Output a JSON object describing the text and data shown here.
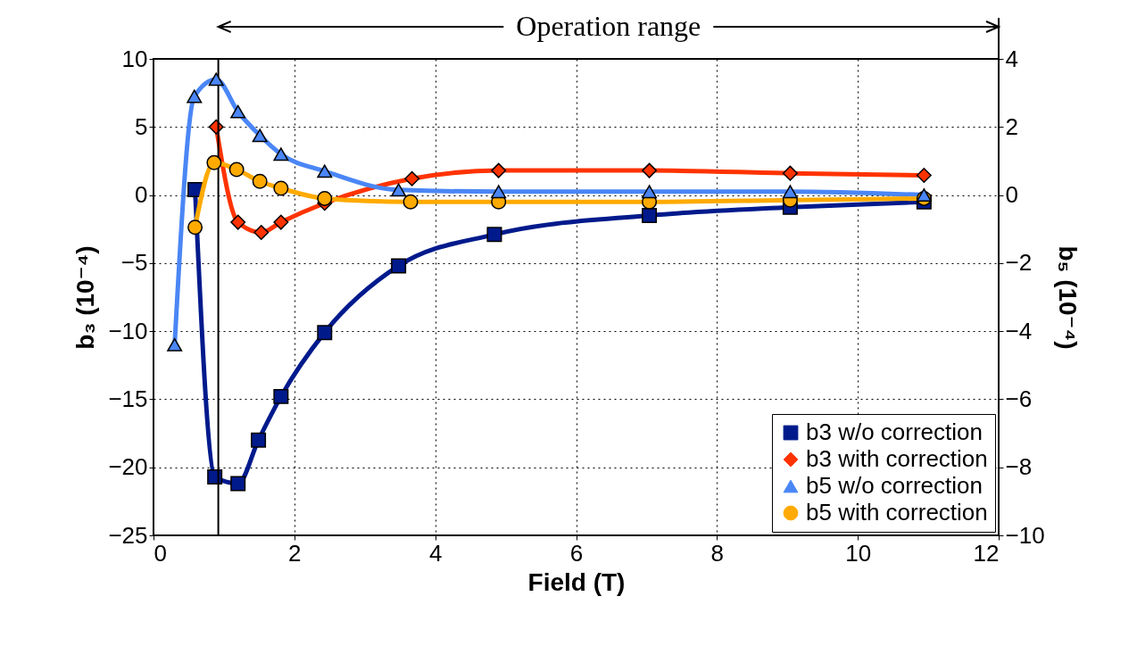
{
  "chart_data": {
    "type": "line",
    "xlabel": "Field (T)",
    "ylabel": "b₃ (10⁻⁴)",
    "y2label": "b₅ (10⁻⁴)",
    "xlim": [
      0,
      12
    ],
    "xticks": [
      0,
      2,
      4,
      6,
      8,
      10,
      12
    ],
    "ylim": [
      -25,
      10
    ],
    "yticks": [
      -25,
      -20,
      -15,
      -10,
      -5,
      0,
      5,
      10
    ],
    "y2lim": [
      -10,
      4
    ],
    "y2ticks": [
      -10,
      -8,
      -6,
      -4,
      -2,
      0,
      2,
      4
    ],
    "grid": true,
    "legend": "bottom right",
    "line_style": "solid",
    "annotations": [
      "Operation range"
    ],
    "ref_lines": [
      {
        "axis": "x",
        "value": 0.92,
        "color": "#000000"
      }
    ],
    "series": [
      {
        "name": "b3 w/o correction",
        "color": "#001a8c",
        "marker": "square",
        "x": [
          0.59,
          0.87,
          1.2,
          1.49,
          1.81,
          2.43,
          3.48,
          4.84,
          7.04,
          9.04,
          10.94
        ],
        "values": [
          0.4,
          -20.7,
          -21.2,
          -18.0,
          -14.8,
          -10.1,
          -5.2,
          -2.9,
          -1.5,
          -0.9,
          -0.5
        ]
      },
      {
        "name": "b3 with correction",
        "color": "#ff3300",
        "marker": "diamond",
        "x": [
          0.89,
          1.2,
          1.53,
          1.81,
          2.43,
          3.67,
          4.9,
          7.04,
          9.04,
          10.94
        ],
        "values": [
          5.0,
          -2.0,
          -2.75,
          -2.0,
          -0.6,
          1.2,
          1.8,
          1.8,
          1.6,
          1.45
        ]
      },
      {
        "name": "b5 w/o correction",
        "color": "#4a86f5",
        "marker": "triangle",
        "axis": "y2",
        "x": [
          0.3,
          0.58,
          0.89,
          1.2,
          1.51,
          1.81,
          2.43,
          3.48,
          4.9,
          7.04,
          9.04,
          10.94
        ],
        "values": [
          -4.4,
          2.9,
          3.4,
          2.45,
          1.75,
          1.2,
          0.7,
          0.15,
          0.1,
          0.1,
          0.1,
          0.0
        ]
      },
      {
        "name": "b5 with correction",
        "color": "#ffaa00",
        "marker": "circle",
        "axis": "y2",
        "x": [
          0.59,
          0.86,
          1.18,
          1.51,
          1.81,
          2.43,
          3.65,
          4.9,
          7.04,
          9.04,
          10.94
        ],
        "values": [
          -0.95,
          0.95,
          0.75,
          0.4,
          0.2,
          -0.1,
          -0.2,
          -0.2,
          -0.2,
          -0.15,
          -0.1
        ]
      }
    ]
  }
}
